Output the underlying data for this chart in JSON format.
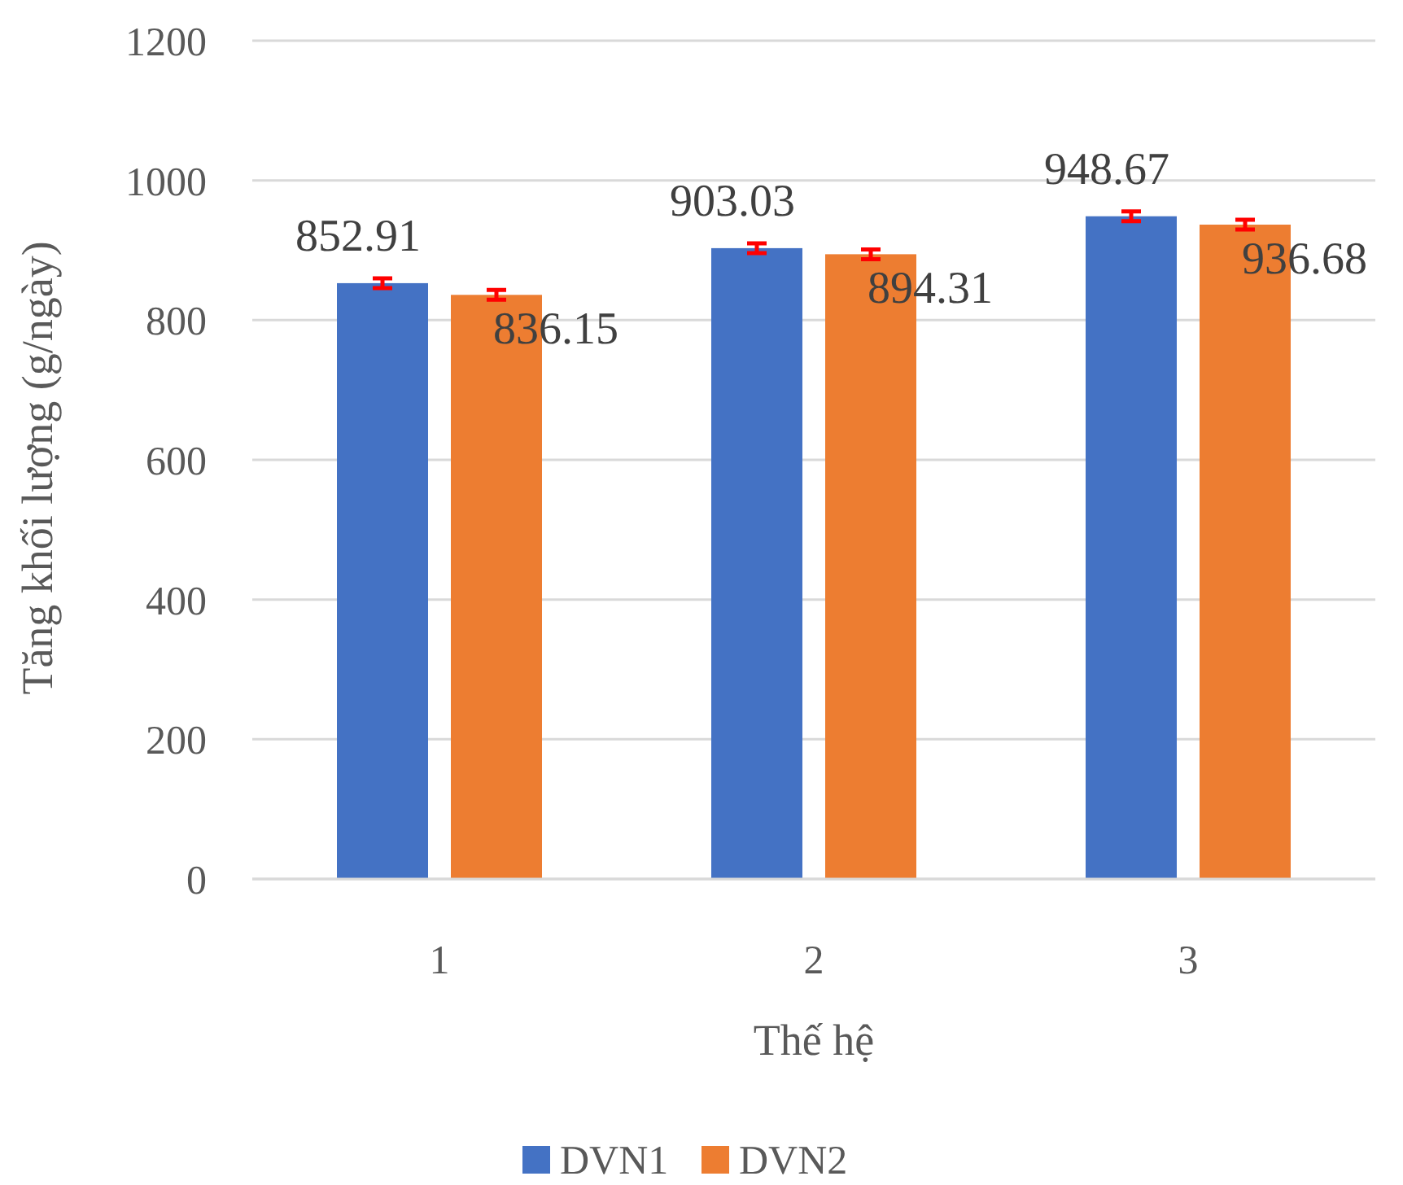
{
  "chart_data": {
    "type": "bar",
    "xlabel": "Thế hệ",
    "ylabel": "Tăng khối lượng (g/ngày)",
    "categories": [
      "1",
      "2",
      "3"
    ],
    "series": [
      {
        "name": "DVN1",
        "color": "#4472c4",
        "values": [
          852.91,
          903.03,
          948.67
        ],
        "errors": [
          7,
          7,
          7
        ]
      },
      {
        "name": "DVN2",
        "color": "#ed7d31",
        "values": [
          836.15,
          894.31,
          936.68
        ],
        "errors": [
          7,
          7,
          7
        ]
      }
    ],
    "ylim": [
      0,
      1200
    ],
    "yticks": [
      0,
      200,
      400,
      600,
      800,
      1000,
      1200
    ],
    "grid": "y",
    "legend": "bottom",
    "data_labels": true
  }
}
